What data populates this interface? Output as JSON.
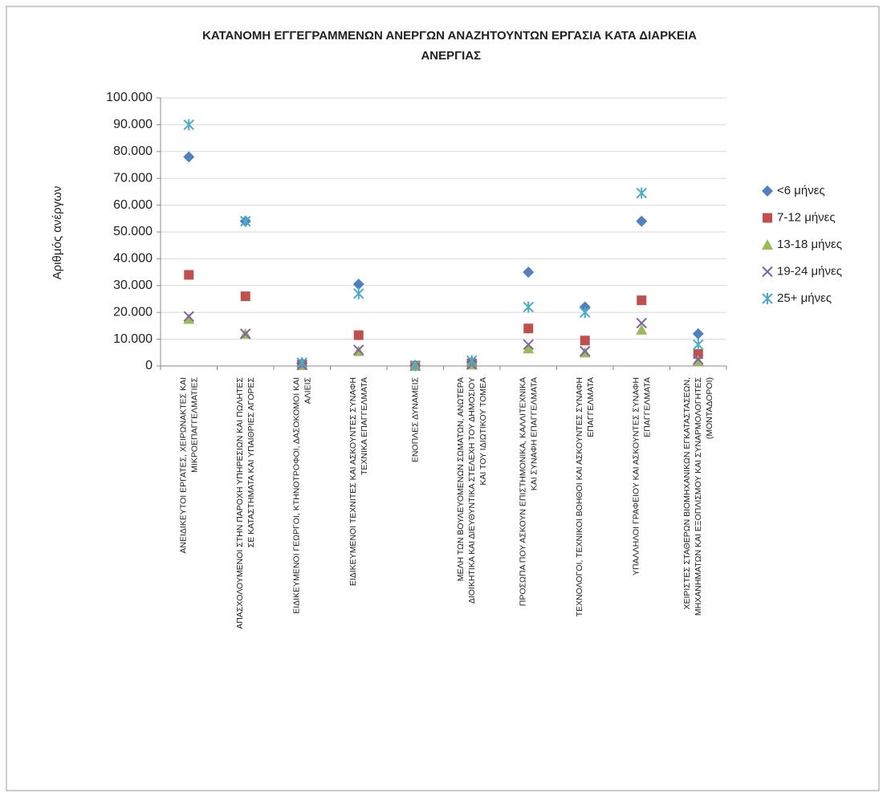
{
  "chart_data": {
    "type": "scatter",
    "title": "ΚΑΤΑΝΟΜΗ ΕΓΓΕΓΡΑΜΜΕΝΩΝ ΑΝΕΡΓΩΝ ΑΝΑΖΗΤΟΥΝΤΩΝ ΕΡΓΑΣΙΑ ΚΑΤΑ ΔΙΑΡΚΕΙΑ ΑΝΕΡΓΙΑΣ",
    "y_label": "Αριθμός ανέργων",
    "categories": [
      "ΑΝΕΙΔΙΚΕΥΤΟΙ ΕΡΓΑΤΕΣ, ΧΕΙΡΩΝΑΚΤΕΣ ΚΑΙ ΜΙΚΡΟΕΠΑΓΓΕΛΜΑΤΙΕΣ",
      "ΑΠΑΣΧΟΛΟΥΜΕΝΟΙ ΣΤΗΝ ΠΑΡΟΧΗ ΥΠΗΡΕΣΙΩΝ ΚΑΙ ΠΩΛΗΤΕΣ ΣΕ ΚΑΤΑΣΤΗΜΑΤΑ ΚΑΙ ΥΠΑΙΘΡΙΕΣ ΑΓΟΡΕΣ",
      "ΕΙΔΙΚΕΥΜΕΝΟΙ ΓΕΩΡΓΟΙ, ΚΤΗΝΟΤΡΟΦΟΙ, ΔΑΣΟΚΟΜΟΙ ΚΑΙ ΑΛΙΕΙΣ",
      "ΕΙΔΙΚΕΥΜΕΝΟΙ ΤΕΧΝΙΤΕΣ ΚΑΙ ΑΣΚΟΥΝΤΕΣ ΣΥΝΑΦΗ ΤΕΧΝΙΚΑ ΕΠΑΓΓΕΛΜΑΤΑ",
      "ΕΝΟΠΛΕΣ ΔΥΝΑΜΕΙΣ",
      "ΜΕΛΗ ΤΩΝ ΒΟΥΛΕΥΟΜΕΝΩΝ ΣΩΜΑΤΩΝ, ΑΝΩΤΕΡΑ ΔΙΟΙΚΗΤΙΚΑ ΚΑΙ ΔΙΕΥΘΥΝΤΙΚΑ ΣΤΕΛΕΧΗ ΤΟΥ ΔΗΜΟΣΙΟΥ ΚΑΙ ΤΟΥ ΙΔΙΩΤΙΚΟΥ ΤΟΜΕΑ",
      "ΠΡΟΣΩΠΑ ΠΟΥ ΑΣΚΟΥΝ ΕΠΙΣΤΗΜΟΝΙΚΑ, ΚΑΛΛΙΤΕΧΝΙΚΑ ΚΑΙ ΣΥΝΑΦΗ ΕΠΑΓΓΕΛΜΑΤΑ",
      "ΤΕΧΝΟΛΟΓΟΙ, ΤΕΧΝΙΚΟΙ ΒΟΗΘΟΙ ΚΑΙ ΑΣΚΟΥΝΤΕΣ ΣΥΝΑΦΗ ΕΠΑΓΓΕΛΜΑΤΑ",
      "ΥΠΑΛΛΗΛΟΙ ΓΡΑΦΕΙΟΥ ΚΑΙ ΑΣΚΟΥΝΤΕΣ ΣΥΝΑΦΗ ΕΠΑΓΓΕΛΜΑΤΑ",
      "ΧΕΙΡΙΣΤΕΣ ΣΤΑΘΕΡΩΝ ΒΙΟΜΗΧΑΝΙΚΩΝ ΕΓΚΑΤΑΣΤΑΣΕΩΝ, ΜΗΧΑΝΗΜΑΤΩΝ ΚΑΙ ΕΞΟΠΛΙΣΜΟΥ ΚΑΙ ΣΥΝΑΡΜΟΛΟΓΗΤΕΣ (ΜΟΝΤΑΔΟΡΟΙ)"
    ],
    "series": [
      {
        "name": "<6 μήνες",
        "color": "#4f81bd",
        "marker": "diamond",
        "values": [
          78000,
          54000,
          1000,
          30500,
          200,
          1500,
          35000,
          22000,
          54000,
          12000
        ]
      },
      {
        "name": "7-12 μήνες",
        "color": "#c0504d",
        "marker": "square",
        "values": [
          34000,
          26000,
          500,
          11500,
          100,
          1000,
          14000,
          9500,
          24500,
          4500
        ]
      },
      {
        "name": "13-18 μήνες",
        "color": "#9bbb59",
        "marker": "triangle",
        "values": [
          17500,
          12000,
          300,
          5500,
          50,
          500,
          6500,
          5000,
          13500,
          2000
        ]
      },
      {
        "name": "19-24 μήνες",
        "color": "#8064a2",
        "marker": "x",
        "values": [
          18500,
          12000,
          400,
          6000,
          50,
          600,
          8000,
          5500,
          16000,
          2500
        ]
      },
      {
        "name": "25+ μήνες",
        "color": "#4bacc6",
        "marker": "star",
        "values": [
          90000,
          54000,
          1200,
          27000,
          200,
          2000,
          22000,
          20000,
          64500,
          8000
        ]
      }
    ],
    "ylim": [
      0,
      100000
    ],
    "yticks": [
      0,
      {
        "value": 10000,
        "label": "10.000"
      },
      {
        "value": 20000,
        "label": "20.000"
      },
      {
        "value": 30000,
        "label": "30.000"
      },
      {
        "value": 40000,
        "label": "40.000"
      },
      {
        "value": 50000,
        "label": "50.000"
      },
      {
        "value": 60000,
        "label": "60.000"
      },
      {
        "value": 70000,
        "label": "70.000"
      },
      {
        "value": 80000,
        "label": "80.000"
      },
      {
        "value": 90000,
        "label": "90.000"
      },
      {
        "value": 100000,
        "label": "100.000"
      }
    ],
    "grid": true,
    "legend": "right"
  }
}
